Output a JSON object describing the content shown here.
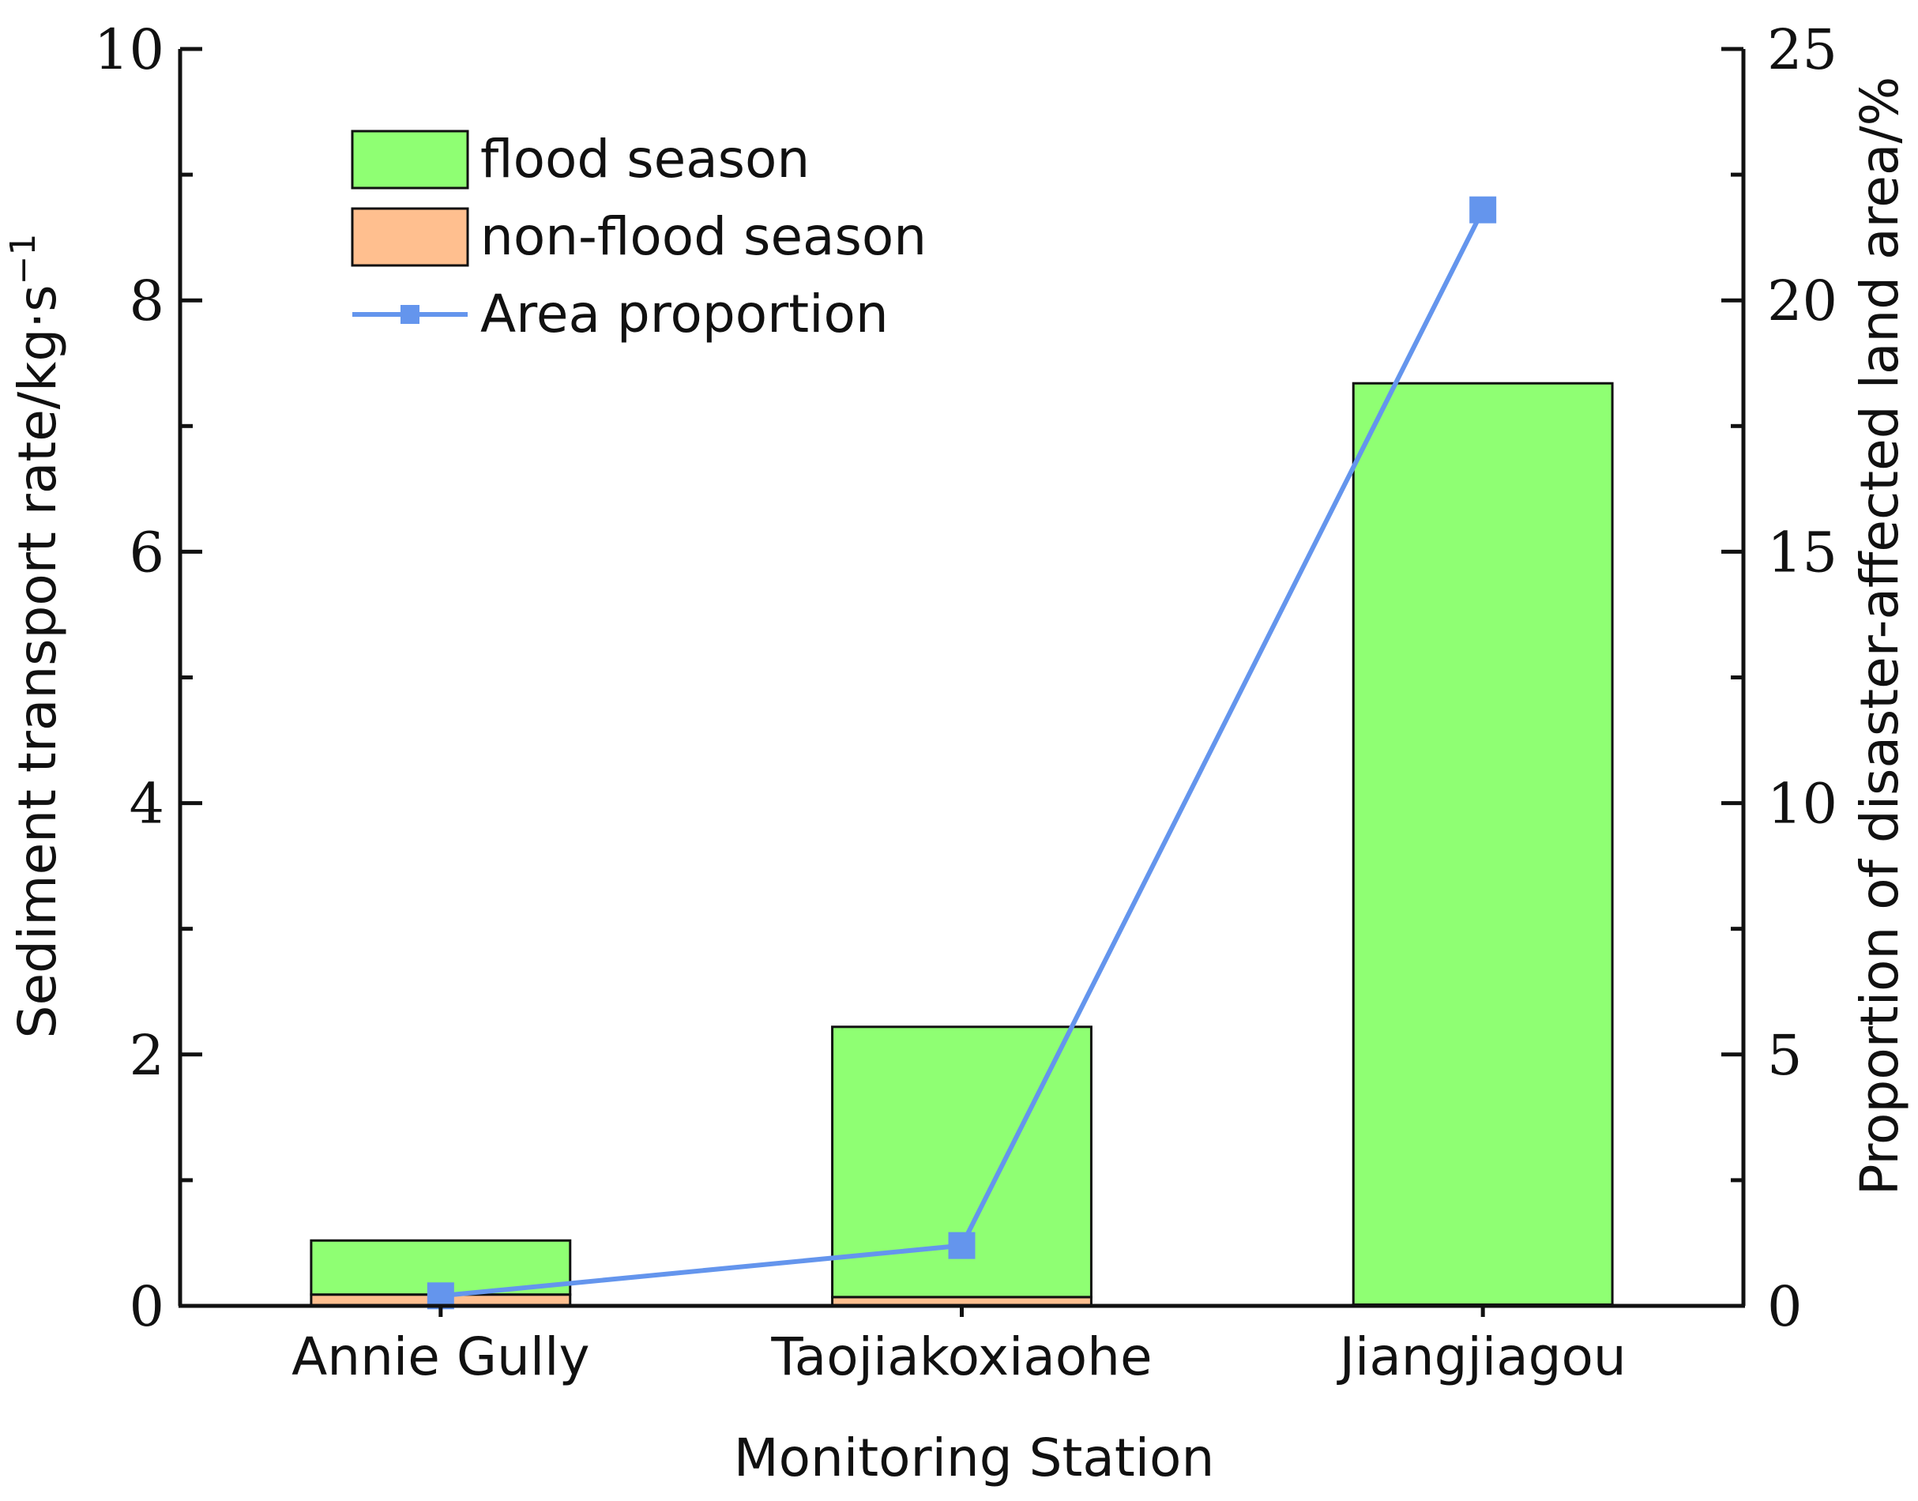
{
  "chart_data": {
    "type": "bar",
    "categories": [
      "Annie Gully",
      "Taojiakoxiaohe",
      "Jiangjiagou"
    ],
    "series": [
      {
        "name": "non-flood season",
        "type": "bar",
        "axis": "left",
        "values": [
          0.09,
          0.07,
          0.01
        ],
        "color": "#FFBF8F"
      },
      {
        "name": "flood season",
        "type": "bar",
        "axis": "left",
        "values": [
          0.43,
          2.15,
          7.33
        ],
        "color": "#8FFF73"
      },
      {
        "name": "Area proportion",
        "type": "line",
        "axis": "right",
        "values": [
          0.2,
          1.2,
          21.8
        ],
        "color": "#6495ED"
      }
    ],
    "legend_order": [
      "flood season",
      "non-flood season",
      "Area proportion"
    ],
    "legend_position": "top-left",
    "xlabel": "Monitoring Station",
    "ylabel": "Sediment transport rate/kg·s",
    "ylabel_superscript": "−1",
    "y2label": "Proportion of disaster-affected land area/%",
    "ylim": [
      0,
      10
    ],
    "y2lim": [
      0,
      25
    ],
    "yticks": [
      "0",
      "2",
      "4",
      "6",
      "8",
      "10"
    ],
    "y2ticks": [
      "0",
      "5",
      "10",
      "15",
      "20",
      "25"
    ],
    "stacked": true,
    "grid": false
  }
}
